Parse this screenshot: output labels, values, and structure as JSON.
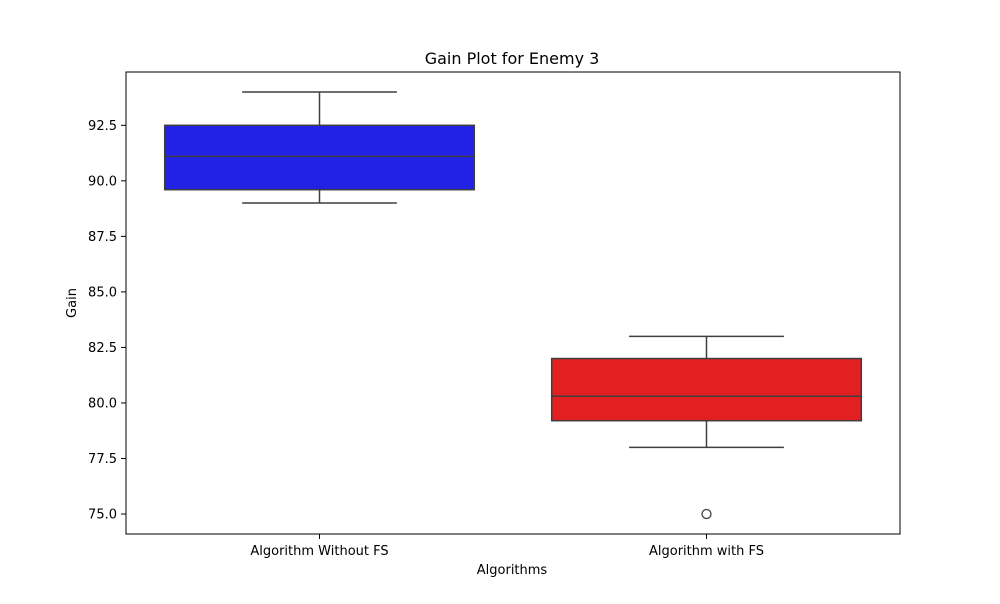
{
  "chart_data": {
    "type": "box",
    "title": "Gain Plot for Enemy 3",
    "xlabel": "Algorithms",
    "ylabel": "Gain",
    "ylim": [
      74.1,
      94.9
    ],
    "yticks": [
      75.0,
      77.5,
      80.0,
      82.5,
      85.0,
      87.5,
      90.0,
      92.5
    ],
    "grid": false,
    "categories": [
      "Algorithm Without FS",
      "Algorithm with FS"
    ],
    "boxes": [
      {
        "category": "Algorithm Without FS",
        "color": "#2222e6",
        "whisker_low": 89.0,
        "q1": 89.6,
        "median": 91.1,
        "q3": 92.5,
        "whisker_high": 94.0,
        "outliers": []
      },
      {
        "category": "Algorithm with FS",
        "color": "#e31f21",
        "whisker_low": 78.0,
        "q1": 79.2,
        "median": 80.3,
        "q3": 82.0,
        "whisker_high": 83.0,
        "outliers": [
          75.0
        ]
      }
    ]
  }
}
